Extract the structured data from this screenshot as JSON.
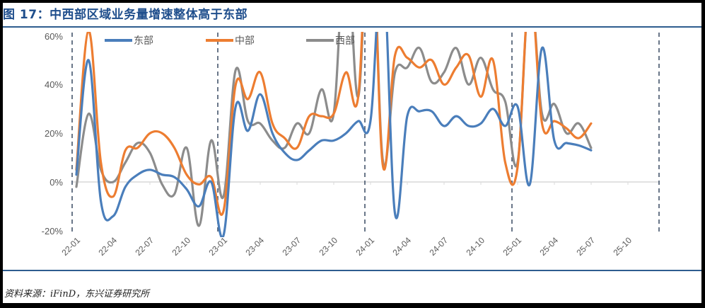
{
  "title": "图 17：中西部区域业务量增速整体高于东部",
  "source": "资料来源：iFinD，东兴证券研究所",
  "legend": [
    {
      "name": "东部",
      "color": "#4a7ebb"
    },
    {
      "name": "中部",
      "color": "#ed7d31"
    },
    {
      "name": "西部",
      "color": "#8c8c8c"
    }
  ],
  "yaxis": {
    "ticks": [
      "60%",
      "40%",
      "20%",
      "0%",
      "-20%"
    ]
  },
  "xaxis": {
    "ticks": [
      "22-01",
      "22-04",
      "22-07",
      "22-10",
      "23-01",
      "23-04",
      "23-07",
      "23-10",
      "24-01",
      "24-04",
      "24-07",
      "24-10",
      "25-01",
      "25-04",
      "25-07",
      "25-10"
    ]
  },
  "chart_data": {
    "type": "line",
    "title": "图 17：中西部区域业务量增速整体高于东部",
    "xlabel": "",
    "ylabel": "",
    "ylim": [
      -20,
      60
    ],
    "grid": false,
    "legend_position": "top",
    "x": [
      "22-01",
      "22-02",
      "22-03",
      "22-04",
      "22-05",
      "22-06",
      "22-07",
      "22-08",
      "22-09",
      "22-10",
      "22-11",
      "22-12",
      "23-01",
      "23-02",
      "23-03",
      "23-04",
      "23-05",
      "23-06",
      "23-07",
      "23-08",
      "23-09",
      "23-10",
      "23-11",
      "23-12",
      "24-01",
      "24-02",
      "24-03",
      "24-04",
      "24-05",
      "24-06",
      "24-07",
      "24-08",
      "24-09",
      "24-10",
      "24-11",
      "24-12",
      "25-01",
      "25-02",
      "25-03",
      "25-04",
      "25-05",
      "25-06",
      "25-07"
    ],
    "series": [
      {
        "name": "东部",
        "values": [
          3,
          50,
          -8,
          -14,
          -2,
          3,
          5,
          3,
          2,
          -3,
          -10,
          0,
          -22,
          31,
          21,
          36,
          20,
          12,
          9,
          13,
          17,
          17,
          20,
          25,
          25,
          90,
          -13,
          27,
          29,
          29,
          23,
          27,
          23,
          24,
          30,
          23,
          31,
          -1,
          55,
          17,
          16,
          15,
          13
        ]
      },
      {
        "name": "中部",
        "values": [
          5,
          62,
          8,
          -6,
          13,
          14,
          20,
          20,
          14,
          3,
          -1,
          2,
          -12,
          40,
          34,
          45,
          24,
          18,
          14,
          27,
          27,
          28,
          45,
          35,
          120,
          7,
          52,
          51,
          47,
          50,
          40,
          47,
          52,
          35,
          50,
          8,
          6,
          80,
          24,
          25,
          22,
          18,
          24
        ]
      },
      {
        "name": "西部",
        "values": [
          -2,
          28,
          5,
          0,
          8,
          16,
          12,
          -1,
          -5,
          14,
          -18,
          17,
          -6,
          46,
          25,
          24,
          17,
          14,
          24,
          20,
          38,
          28,
          100,
          35,
          120,
          9,
          45,
          47,
          55,
          41,
          45,
          55,
          40,
          51,
          38,
          33,
          8,
          80,
          28,
          32,
          20,
          24,
          14
        ]
      }
    ]
  }
}
